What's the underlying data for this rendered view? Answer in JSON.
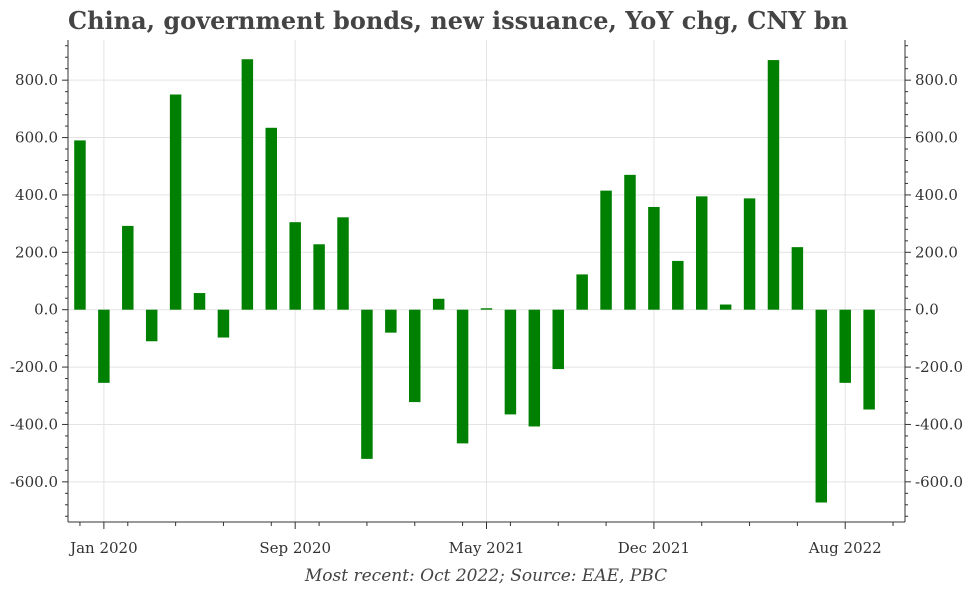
{
  "chart_data": {
    "type": "bar",
    "title": "China, government bonds, new issuance, YoY chg, CNY bn",
    "footer": "Most recent: Oct 2022; Source: EAE, PBC",
    "xlabel": "",
    "ylabel": "",
    "ylim": [
      -740,
      940
    ],
    "yticks": [
      -600,
      -400,
      -200,
      0,
      200,
      400,
      600,
      800
    ],
    "ytick_labels": [
      "-600.0",
      "-400.0",
      "-200.0",
      "0.0",
      "200.0",
      "400.0",
      "600.0",
      "800.0"
    ],
    "xtick_labels": [
      "Jan 2020",
      "Sep 2020",
      "May 2021",
      "Dec 2021",
      "Aug 2022"
    ],
    "xtick_months": [
      0,
      8,
      16,
      23,
      31
    ],
    "month_range": [
      -1.5,
      33.5
    ],
    "first_month": "Dec 2019",
    "bar_color": "#008000",
    "grid": true,
    "categories": [
      "Dec 2019",
      "Jan 2020",
      "Feb 2020",
      "Mar 2020",
      "Apr 2020",
      "May 2020",
      "Jun 2020",
      "Jul 2020",
      "Aug 2020",
      "Sep 2020",
      "Oct 2020",
      "Nov 2020",
      "Dec 2020",
      "Jan 2021",
      "Feb 2021",
      "Mar 2021",
      "Apr 2021",
      "May 2021",
      "Jun 2021",
      "Jul 2021",
      "Aug 2021",
      "Sep 2021",
      "Oct 2021",
      "Nov 2021",
      "Dec 2021",
      "Jan 2022",
      "Feb 2022",
      "Mar 2022",
      "Apr 2022",
      "May 2022",
      "Jun 2022",
      "Jul 2022",
      "Aug 2022",
      "Sep 2022",
      "Oct 2022"
    ],
    "values": [
      590,
      -255,
      292,
      -110,
      750,
      58,
      -97,
      873,
      634,
      305,
      228,
      322,
      -520,
      -80,
      -322,
      38,
      -466,
      5,
      -365,
      -407,
      -207,
      123,
      415,
      470,
      358,
      170,
      395,
      18,
      388,
      870,
      218,
      -672,
      -255,
      -348,
      null
    ]
  }
}
